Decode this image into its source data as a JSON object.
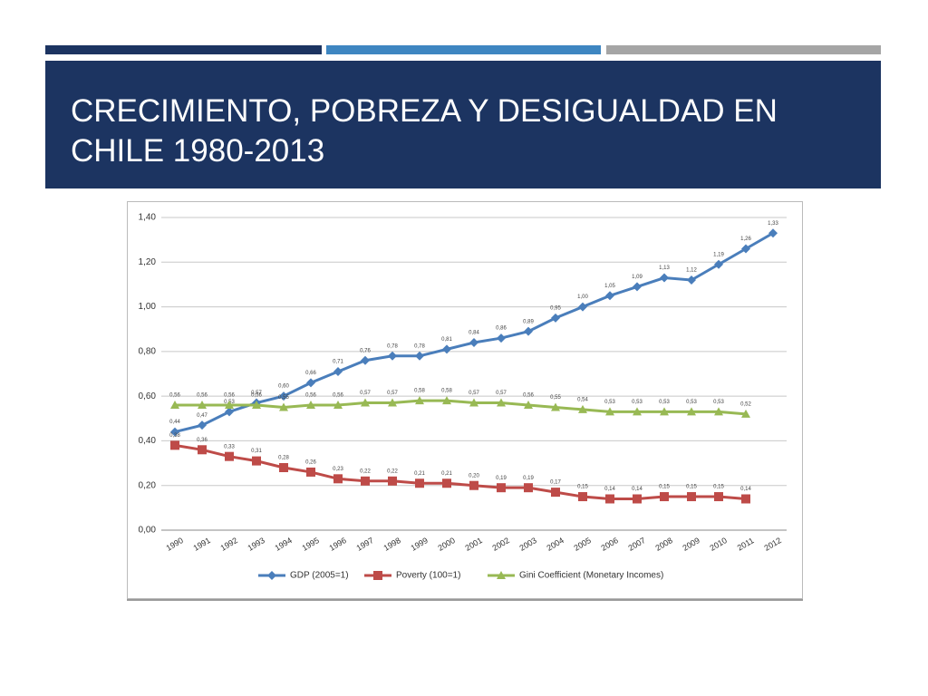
{
  "slide_title": "CRECIMIENTO, POBREZA Y DESIGUALDAD EN CHILE 1980-2013",
  "chart_data": {
    "type": "line",
    "categories": [
      "1990",
      "1991",
      "1992",
      "1993",
      "1994",
      "1995",
      "1996",
      "1997",
      "1998",
      "1999",
      "2000",
      "2001",
      "2002",
      "2003",
      "2004",
      "2005",
      "2006",
      "2007",
      "2008",
      "2009",
      "2010",
      "2011",
      "2012"
    ],
    "ylim": [
      0,
      1.4
    ],
    "yticks": [
      {
        "value": 0,
        "label": "0,00"
      },
      {
        "value": 0.2,
        "label": "0,20"
      },
      {
        "value": 0.4,
        "label": "0,40"
      },
      {
        "value": 0.6,
        "label": "0,60"
      },
      {
        "value": 0.8,
        "label": "0,80"
      },
      {
        "value": 1.0,
        "label": "1,00"
      },
      {
        "value": 1.2,
        "label": "1,20"
      },
      {
        "value": 1.4,
        "label": "1,40"
      }
    ],
    "grid": true,
    "legend": "bottom",
    "series": [
      {
        "name": "GDP (2005=1)",
        "color": "#4a7ebb",
        "marker": "diamond",
        "values": [
          0.44,
          0.47,
          0.53,
          0.57,
          0.6,
          0.66,
          0.71,
          0.76,
          0.78,
          0.78,
          0.81,
          0.84,
          0.86,
          0.89,
          0.95,
          1.0,
          1.05,
          1.09,
          1.13,
          1.12,
          1.19,
          1.26,
          1.33
        ],
        "value_labels": [
          "0,44",
          "0,47",
          "0,53",
          "0,57",
          "0,60",
          "0,66",
          "0,71",
          "0,76",
          "0,78",
          "0,78",
          "0,81",
          "0,84",
          "0,86",
          "0,89",
          "0,95",
          "1,00",
          "1,05",
          "1,09",
          "1,13",
          "1,12",
          "1,19",
          "1,26",
          "1,33"
        ]
      },
      {
        "name": "Poverty (100=1)",
        "color": "#be4b48",
        "marker": "square",
        "values": [
          0.38,
          0.36,
          0.33,
          0.31,
          0.28,
          0.26,
          0.23,
          0.22,
          0.22,
          0.21,
          0.21,
          0.2,
          0.19,
          0.19,
          0.17,
          0.15,
          0.14,
          0.14,
          0.15,
          0.15,
          0.15,
          0.14,
          null
        ],
        "value_labels": [
          "0,38",
          "0,36",
          "0,33",
          "0,31",
          "0,28",
          "0,26",
          "0,23",
          "0,22",
          "0,22",
          "0,21",
          "0,21",
          "0,20",
          "0,19",
          "0,19",
          "0,17",
          "0,15",
          "0,14",
          "0,14",
          "0,15",
          "0,15",
          "0,15",
          "0,14",
          null
        ]
      },
      {
        "name": "Gini Coefficient (Monetary Incomes)",
        "color": "#98b954",
        "marker": "triangle",
        "values": [
          0.56,
          0.56,
          0.56,
          0.56,
          0.55,
          0.56,
          0.56,
          0.57,
          0.57,
          0.58,
          0.58,
          0.57,
          0.57,
          0.56,
          0.55,
          0.54,
          0.53,
          0.53,
          0.53,
          0.53,
          0.53,
          0.52,
          null
        ],
        "value_labels": [
          "0,56",
          "0,56",
          "0,56",
          "0,56",
          "0,55",
          "0,56",
          "0,56",
          "0,57",
          "0,57",
          "0,58",
          "0,58",
          "0,57",
          "0,57",
          "0,56",
          "0,55",
          "0,54",
          "0,53",
          "0,53",
          "0,53",
          "0,53",
          "0,53",
          "0,52",
          null
        ]
      }
    ]
  }
}
